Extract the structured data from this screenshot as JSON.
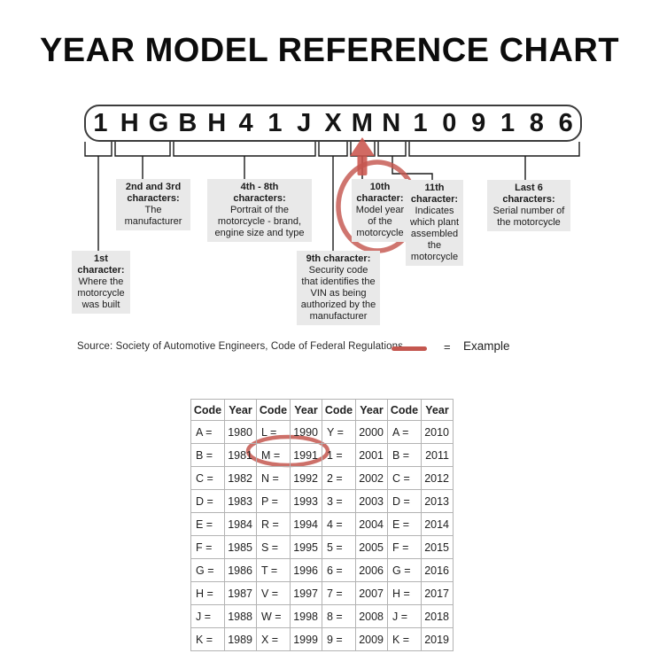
{
  "title": "YEAR MODEL REFERENCE CHART",
  "vin": {
    "characters": [
      "1",
      "H",
      "G",
      "B",
      "H",
      "4",
      "1",
      "J",
      "X",
      "M",
      "N",
      "1",
      "0",
      "9",
      "1",
      "8",
      "6"
    ]
  },
  "callouts": {
    "first": {
      "heading": "1st\ncharacter:",
      "body": "Where the\nmotorcycle\nwas built"
    },
    "second_third": {
      "heading": "2nd and 3rd\ncharacters:",
      "body": "The\nmanufacturer"
    },
    "fourth_eighth": {
      "heading": "4th - 8th\ncharacters:",
      "body": "Portrait of the\nmotorcycle - brand,\nengine size and type"
    },
    "ninth": {
      "heading": "9th character:",
      "body": "Security code\nthat identifies the\nVIN as being\nauthorized by the\nmanufacturer"
    },
    "tenth": {
      "heading": "10th\ncharacter:",
      "body": "Model year\nof the\nmotorcycle"
    },
    "eleventh": {
      "heading": "11th\ncharacter:",
      "body": "Indicates\nwhich plant\nassembled\nthe\nmotorcycle"
    },
    "last_six": {
      "heading": "Last 6\ncharacters:",
      "body": "Serial number of\nthe motorcycle"
    }
  },
  "source": "Source: Society of Automotive Engineers, Code of Federal Regulations",
  "legend": {
    "equals": "=",
    "label": "Example"
  },
  "table": {
    "headers": [
      "Code",
      "Year",
      "Code",
      "Year",
      "Code",
      "Year",
      "Code",
      "Year"
    ],
    "rows": [
      [
        "A =",
        "1980",
        "L =",
        "1990",
        "Y =",
        "2000",
        "A =",
        "2010"
      ],
      [
        "B =",
        "1981",
        "M =",
        "1991",
        "1 =",
        "2001",
        "B =",
        "2011"
      ],
      [
        "C =",
        "1982",
        "N =",
        "1992",
        "2 =",
        "2002",
        "C =",
        "2012"
      ],
      [
        "D =",
        "1983",
        "P =",
        "1993",
        "3 =",
        "2003",
        "D =",
        "2013"
      ],
      [
        "E =",
        "1984",
        "R =",
        "1994",
        "4 =",
        "2004",
        "E =",
        "2014"
      ],
      [
        "F =",
        "1985",
        "S =",
        "1995",
        "5 =",
        "2005",
        "F =",
        "2015"
      ],
      [
        "G =",
        "1986",
        "T =",
        "1996",
        "6 =",
        "2006",
        "G =",
        "2016"
      ],
      [
        "H =",
        "1987",
        "V =",
        "1997",
        "7 =",
        "2007",
        "H =",
        "2017"
      ],
      [
        "J =",
        "1988",
        "W =",
        "1998",
        "8 =",
        "2008",
        "J =",
        "2018"
      ],
      [
        "K =",
        "1989",
        "X =",
        "1999",
        "9 =",
        "2009",
        "K =",
        "2019"
      ]
    ]
  },
  "annotations": {
    "circled_vin_character": "M",
    "circled_table_entry": "M = 1991"
  },
  "colors": {
    "example_red": "#c4574f",
    "callout_background": "#e9e9e9",
    "line_black": "#1a1a1a"
  }
}
